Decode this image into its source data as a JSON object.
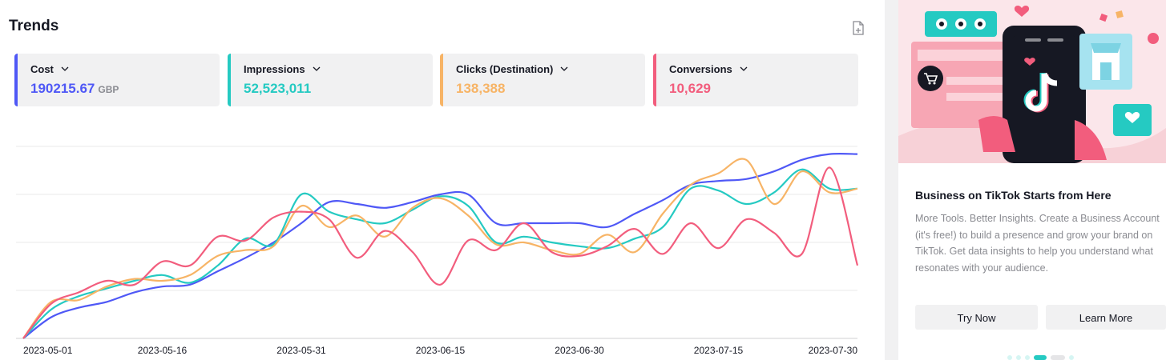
{
  "trends": {
    "title": "Trends",
    "export_icon": "export-file-icon",
    "metrics": [
      {
        "label": "Cost",
        "value": "190215.67",
        "unit": "GBP",
        "color": "#4f58f6"
      },
      {
        "label": "Impressions",
        "value": "52,523,011",
        "unit": "",
        "color": "#25cac2"
      },
      {
        "label": "Clicks (Destination)",
        "value": "138,388",
        "unit": "",
        "color": "#f7b466"
      },
      {
        "label": "Conversions",
        "value": "10,629",
        "unit": "",
        "color": "#f25d7d"
      }
    ]
  },
  "chart_data": {
    "type": "line",
    "x_tick_labels": [
      "2023-05-01",
      "2023-05-16",
      "2023-05-31",
      "2023-06-15",
      "2023-06-30",
      "2023-07-15",
      "2023-07-30"
    ],
    "ylim": [
      0,
      1
    ],
    "grid": true,
    "y_axis_labels_shown": false,
    "x": [
      "2023-05-01",
      "2023-05-04",
      "2023-05-07",
      "2023-05-10",
      "2023-05-13",
      "2023-05-16",
      "2023-05-19",
      "2023-05-22",
      "2023-05-25",
      "2023-05-28",
      "2023-05-31",
      "2023-06-03",
      "2023-06-06",
      "2023-06-09",
      "2023-06-12",
      "2023-06-15",
      "2023-06-18",
      "2023-06-21",
      "2023-06-24",
      "2023-06-27",
      "2023-06-30",
      "2023-07-03",
      "2023-07-06",
      "2023-07-09",
      "2023-07-12",
      "2023-07-15",
      "2023-07-18",
      "2023-07-21",
      "2023-07-24",
      "2023-07-27",
      "2023-07-30"
    ],
    "series": [
      {
        "name": "Cost",
        "color": "#4f58f6",
        "values": [
          0.0,
          0.11,
          0.16,
          0.19,
          0.24,
          0.27,
          0.28,
          0.35,
          0.42,
          0.5,
          0.6,
          0.71,
          0.7,
          0.68,
          0.71,
          0.75,
          0.75,
          0.6,
          0.6,
          0.6,
          0.6,
          0.58,
          0.65,
          0.72,
          0.8,
          0.82,
          0.83,
          0.87,
          0.93,
          0.96,
          0.96
        ]
      },
      {
        "name": "Impressions",
        "color": "#25cac2",
        "values": [
          0.0,
          0.15,
          0.22,
          0.26,
          0.3,
          0.33,
          0.29,
          0.38,
          0.52,
          0.49,
          0.75,
          0.66,
          0.62,
          0.6,
          0.67,
          0.74,
          0.69,
          0.5,
          0.53,
          0.5,
          0.48,
          0.47,
          0.52,
          0.58,
          0.78,
          0.77,
          0.7,
          0.76,
          0.88,
          0.78,
          0.78
        ]
      },
      {
        "name": "Clicks (Destination)",
        "color": "#f7b466",
        "values": [
          0.0,
          0.19,
          0.2,
          0.27,
          0.31,
          0.3,
          0.33,
          0.43,
          0.46,
          0.48,
          0.69,
          0.58,
          0.64,
          0.53,
          0.68,
          0.73,
          0.64,
          0.49,
          0.5,
          0.46,
          0.44,
          0.54,
          0.45,
          0.65,
          0.8,
          0.86,
          0.93,
          0.7,
          0.87,
          0.76,
          0.78
        ]
      },
      {
        "name": "Conversions",
        "color": "#f25d7d",
        "values": [
          0.0,
          0.18,
          0.24,
          0.3,
          0.28,
          0.4,
          0.38,
          0.53,
          0.51,
          0.63,
          0.66,
          0.62,
          0.42,
          0.56,
          0.45,
          0.28,
          0.51,
          0.46,
          0.6,
          0.45,
          0.43,
          0.48,
          0.57,
          0.44,
          0.6,
          0.47,
          0.62,
          0.55,
          0.44,
          0.89,
          0.38
        ]
      }
    ]
  },
  "promo": {
    "title": "Business on TikTok Starts from Here",
    "body": "More Tools. Better Insights. Create a Business Account (it's free!) to build a presence and grow your brand on TikTok. Get data insights to help you understand what resonates with your audience.",
    "try_now": "Try Now",
    "learn_more": "Learn More"
  }
}
